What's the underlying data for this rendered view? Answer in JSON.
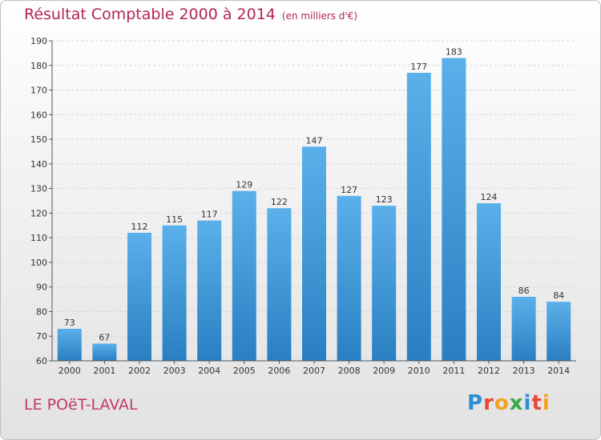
{
  "header": {
    "title": "Résultat Comptable 2000 à 2014",
    "unit": "(en milliers d'€)"
  },
  "footer": {
    "location": "LE POëT-LAVAL",
    "logo_letters": [
      "P",
      "r",
      "o",
      "x",
      "i",
      "t",
      "i"
    ],
    "logo_colors": [
      "#2a8fd6",
      "#e84a3a",
      "#f2a31c",
      "#3aa845",
      "#2a8fd6",
      "#e84a3a",
      "#f2a31c"
    ]
  },
  "colors": {
    "bar_top": "#5bb0ea",
    "bar_bottom": "#2a7fc2",
    "title": "#b2245a"
  },
  "chart_data": {
    "type": "bar",
    "title": "Résultat Comptable 2000 à 2014",
    "subtitle": "(en milliers d'€)",
    "categories": [
      "2000",
      "2001",
      "2002",
      "2003",
      "2004",
      "2005",
      "2006",
      "2007",
      "2008",
      "2009",
      "2010",
      "2011",
      "2012",
      "2013",
      "2014"
    ],
    "values": [
      73,
      67,
      112,
      115,
      117,
      129,
      122,
      147,
      127,
      123,
      177,
      183,
      124,
      86,
      84
    ],
    "ylim": [
      60,
      190
    ],
    "yticks": [
      60,
      70,
      80,
      90,
      100,
      110,
      120,
      130,
      140,
      150,
      160,
      170,
      180,
      190
    ],
    "grid": true,
    "xlabel": "",
    "ylabel": ""
  }
}
